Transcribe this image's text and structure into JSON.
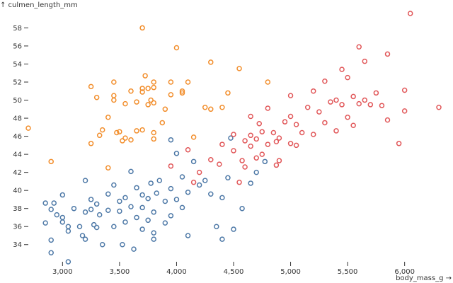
{
  "chart_data": {
    "type": "scatter",
    "x_label": "body_mass_g →",
    "y_label": "↑ culmen_length_mm",
    "xlim": [
      2700,
      6300
    ],
    "ylim": [
      32.1,
      59.6
    ],
    "xticks": [
      {
        "value": 3000,
        "label": "3,000"
      },
      {
        "value": 3500,
        "label": "3,500"
      },
      {
        "value": 4000,
        "label": "4,000"
      },
      {
        "value": 4500,
        "label": "4,500"
      },
      {
        "value": 5000,
        "label": "5,000"
      },
      {
        "value": 5500,
        "label": "5,500"
      },
      {
        "value": 6000,
        "label": "6,000"
      }
    ],
    "yticks": [
      34,
      36,
      38,
      40,
      42,
      44,
      46,
      48,
      50,
      52,
      54,
      56,
      58
    ],
    "grid": false,
    "series": [
      {
        "color": "#4e79a7",
        "x": [
          2850,
          2850,
          2900,
          2900,
          2900,
          2925,
          2950,
          3000,
          3000,
          3000,
          3050,
          3050,
          3050,
          3100,
          3150,
          3175,
          3200,
          3200,
          3250,
          3250,
          3275,
          3300,
          3300,
          3325,
          3350,
          3400,
          3400,
          3450,
          3450,
          3500,
          3500,
          3525,
          3550,
          3550,
          3600,
          3600,
          3625,
          3650,
          3650,
          3700,
          3700,
          3700,
          3750,
          3750,
          3775,
          3800,
          3800,
          3825,
          3850,
          3900,
          3900,
          3950,
          3950,
          4000,
          4050,
          4050,
          4100,
          4150,
          4200,
          4250,
          4300,
          4350,
          4400,
          4450,
          4475,
          4500,
          4575,
          4650,
          4700,
          4775,
          4000,
          3950,
          4100,
          3800,
          4400,
          3200
        ],
        "y": [
          36.4,
          38.6,
          37.9,
          34.5,
          33.1,
          38.6,
          37.3,
          37.0,
          36.5,
          39.5,
          32.1,
          35.5,
          36.0,
          38.0,
          36.0,
          35.0,
          41.1,
          34.6,
          37.9,
          39.0,
          36.2,
          38.5,
          35.9,
          37.3,
          34.0,
          37.8,
          39.6,
          36.0,
          40.6,
          38.8,
          37.7,
          34.0,
          39.2,
          36.5,
          42.1,
          38.2,
          33.5,
          40.3,
          37.0,
          39.5,
          35.7,
          38.1,
          39.1,
          36.7,
          40.8,
          37.6,
          35.3,
          39.7,
          41.1,
          38.8,
          36.4,
          40.2,
          37.2,
          39.0,
          41.5,
          38.1,
          39.8,
          43.2,
          40.6,
          41.1,
          39.6,
          36.0,
          39.2,
          41.4,
          45.8,
          35.7,
          38.0,
          40.8,
          42.0,
          43.2,
          44.1,
          45.6,
          35.0,
          34.6,
          34.6,
          37.6
        ]
      },
      {
        "color": "#f28e2c",
        "x": [
          2700,
          2900,
          3250,
          3300,
          3325,
          3250,
          3350,
          3400,
          3450,
          3450,
          3450,
          3475,
          3500,
          3525,
          3550,
          3550,
          3600,
          3650,
          3650,
          3700,
          3700,
          3700,
          3700,
          3725,
          3750,
          3750,
          3775,
          3800,
          3800,
          3800,
          3800,
          3800,
          3875,
          3900,
          3950,
          3950,
          4000,
          4050,
          4050,
          4100,
          4150,
          4250,
          4300,
          4300,
          4400,
          4450,
          4550,
          4800,
          3600,
          3400
        ],
        "y": [
          46.9,
          43.2,
          51.5,
          50.3,
          46.1,
          45.2,
          46.7,
          48.1,
          50.5,
          50.0,
          52.0,
          46.4,
          46.5,
          45.5,
          49.6,
          45.8,
          51.0,
          49.8,
          46.6,
          58.0,
          51.3,
          50.9,
          46.7,
          52.7,
          49.5,
          51.3,
          50.0,
          51.4,
          52.0,
          46.4,
          49.7,
          45.7,
          47.5,
          49.0,
          50.6,
          52.0,
          55.8,
          50.8,
          51.0,
          52.0,
          45.9,
          49.2,
          54.2,
          49.0,
          49.2,
          50.8,
          53.5,
          52.0,
          45.6,
          42.5
        ]
      },
      {
        "color": "#e15759",
        "x": [
          3950,
          4100,
          4150,
          4200,
          4300,
          4375,
          4400,
          4500,
          4500,
          4550,
          4575,
          4600,
          4600,
          4650,
          4650,
          4700,
          4700,
          4725,
          4750,
          4750,
          4800,
          4800,
          4850,
          4875,
          4900,
          4900,
          4950,
          5000,
          5000,
          5000,
          5050,
          5050,
          5100,
          5150,
          5200,
          5200,
          5250,
          5300,
          5300,
          5350,
          5400,
          5400,
          5450,
          5500,
          5500,
          5550,
          5550,
          5600,
          5600,
          5650,
          5650,
          5700,
          5750,
          5800,
          5850,
          5850,
          5950,
          6000,
          6000,
          6050,
          6300,
          4650,
          4875,
          5450
        ],
        "y": [
          42.7,
          44.5,
          40.9,
          42.0,
          43.4,
          42.9,
          45.1,
          44.4,
          46.2,
          40.9,
          43.3,
          45.5,
          42.6,
          46.1,
          48.2,
          45.7,
          43.6,
          47.4,
          46.5,
          44.0,
          45.1,
          49.1,
          46.4,
          42.8,
          45.8,
          43.3,
          47.6,
          45.2,
          48.2,
          50.5,
          47.3,
          45.0,
          46.4,
          49.2,
          46.2,
          51.0,
          48.7,
          47.5,
          52.1,
          49.8,
          46.6,
          50.0,
          49.5,
          52.5,
          48.1,
          50.4,
          47.2,
          55.9,
          49.6,
          50.0,
          54.3,
          49.5,
          50.8,
          49.4,
          55.1,
          47.8,
          45.2,
          51.1,
          48.8,
          59.6,
          49.2,
          44.9,
          45.4,
          53.4
        ]
      }
    ]
  }
}
